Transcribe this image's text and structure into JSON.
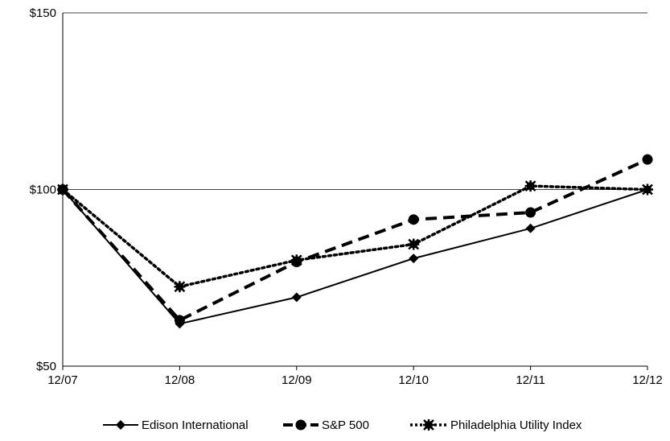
{
  "chart_data": {
    "type": "line",
    "title": "",
    "xlabel": "",
    "ylabel": "",
    "categories": [
      "12/07",
      "12/08",
      "12/09",
      "12/10",
      "12/11",
      "12/12"
    ],
    "y_ticks": [
      "$50",
      "$100",
      "$150"
    ],
    "ylim": [
      50,
      150
    ],
    "grid": "horizontal",
    "legend_position": "bottom",
    "series": [
      {
        "name": "Edison International",
        "values": [
          100,
          62,
          69.5,
          80.5,
          89,
          100
        ],
        "color": "#000000",
        "line_style": "solid",
        "marker": "diamond"
      },
      {
        "name": "S&P 500",
        "values": [
          100,
          63,
          79.5,
          91.5,
          93.5,
          108.5
        ],
        "color": "#000000",
        "line_style": "dashed",
        "marker": "circle"
      },
      {
        "name": "Philadelphia Utility Index",
        "values": [
          100,
          72.5,
          80,
          84.5,
          101,
          100
        ],
        "color": "#000000",
        "line_style": "dotted",
        "marker": "star"
      }
    ]
  }
}
